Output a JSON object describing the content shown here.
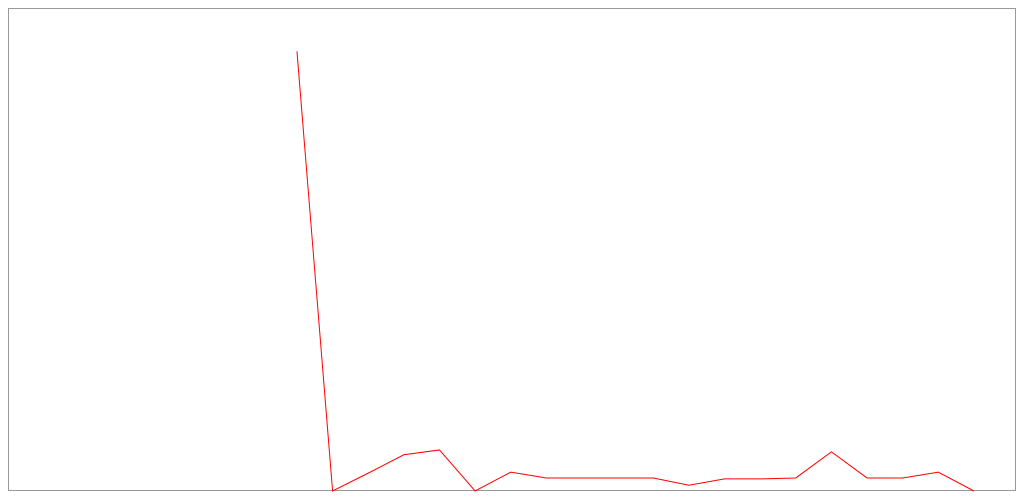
{
  "chart_data": {
    "type": "line",
    "x": [
      8,
      9,
      10,
      11,
      12,
      13,
      14,
      15,
      16,
      17,
      18,
      19,
      20,
      21,
      22,
      23,
      24,
      25,
      26,
      27
    ],
    "series": [
      {
        "color": "#ff0000",
        "values": [
          91,
          0,
          3.7,
          7.5,
          8.5,
          0,
          3.9,
          2.7,
          2.7,
          2.7,
          2.7,
          1.2,
          2.5,
          2.5,
          2.7,
          8.1,
          2.7,
          2.7,
          3.9,
          0
        ]
      }
    ],
    "xlim": [
      -0.11,
      28.18
    ],
    "ylim": [
      0,
      100
    ]
  }
}
